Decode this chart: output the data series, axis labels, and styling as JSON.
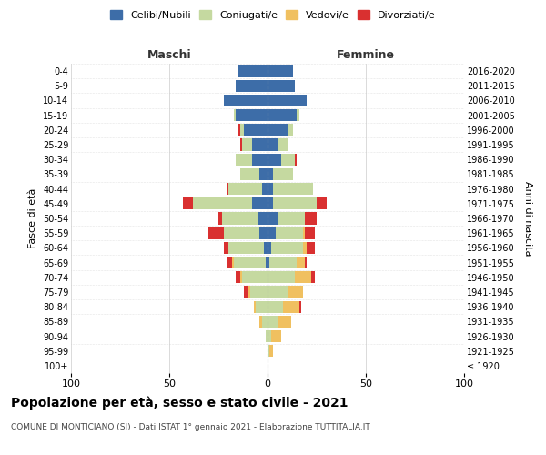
{
  "age_groups": [
    "100+",
    "95-99",
    "90-94",
    "85-89",
    "80-84",
    "75-79",
    "70-74",
    "65-69",
    "60-64",
    "55-59",
    "50-54",
    "45-49",
    "40-44",
    "35-39",
    "30-34",
    "25-29",
    "20-24",
    "15-19",
    "10-14",
    "5-9",
    "0-4"
  ],
  "birth_years": [
    "≤ 1920",
    "1921-1925",
    "1926-1930",
    "1931-1935",
    "1936-1940",
    "1941-1945",
    "1946-1950",
    "1951-1955",
    "1956-1960",
    "1961-1965",
    "1966-1970",
    "1971-1975",
    "1976-1980",
    "1981-1985",
    "1986-1990",
    "1991-1995",
    "1996-2000",
    "2001-2005",
    "2006-2010",
    "2011-2015",
    "2016-2020"
  ],
  "maschi": {
    "celibi": [
      0,
      0,
      0,
      0,
      0,
      0,
      0,
      1,
      2,
      4,
      5,
      8,
      3,
      4,
      8,
      8,
      12,
      16,
      22,
      16,
      15
    ],
    "coniugati": [
      0,
      0,
      1,
      3,
      6,
      9,
      13,
      16,
      18,
      18,
      18,
      30,
      17,
      10,
      8,
      5,
      2,
      1,
      0,
      0,
      0
    ],
    "vedovi": [
      0,
      0,
      0,
      1,
      1,
      1,
      1,
      1,
      0,
      0,
      0,
      0,
      0,
      0,
      0,
      0,
      0,
      0,
      0,
      0,
      0
    ],
    "divorziati": [
      0,
      0,
      0,
      0,
      0,
      2,
      2,
      3,
      2,
      8,
      2,
      5,
      1,
      0,
      0,
      1,
      1,
      0,
      0,
      0,
      0
    ]
  },
  "femmine": {
    "nubili": [
      0,
      0,
      0,
      0,
      0,
      0,
      0,
      1,
      2,
      4,
      5,
      3,
      3,
      3,
      7,
      5,
      10,
      15,
      20,
      14,
      13
    ],
    "coniugate": [
      0,
      1,
      2,
      5,
      8,
      10,
      14,
      14,
      16,
      14,
      14,
      22,
      20,
      10,
      7,
      5,
      3,
      1,
      0,
      0,
      0
    ],
    "vedove": [
      0,
      2,
      5,
      7,
      8,
      8,
      8,
      4,
      2,
      1,
      0,
      0,
      0,
      0,
      0,
      0,
      0,
      0,
      0,
      0,
      0
    ],
    "divorziate": [
      0,
      0,
      0,
      0,
      1,
      0,
      2,
      1,
      4,
      5,
      6,
      5,
      0,
      0,
      1,
      0,
      0,
      0,
      0,
      0,
      0
    ]
  },
  "colors": {
    "celibi": "#3d6da8",
    "coniugati": "#c5d9a0",
    "vedovi": "#f0c060",
    "divorziati": "#d93030"
  },
  "title": "Popolazione per età, sesso e stato civile - 2021",
  "subtitle": "COMUNE DI MONTICIANO (SI) - Dati ISTAT 1° gennaio 2021 - Elaborazione TUTTITALIA.IT",
  "xlabel_left": "Maschi",
  "xlabel_right": "Femmine",
  "ylabel": "Fasce di età",
  "ylabel_right": "Anni di nascita",
  "xlim": 100,
  "background_color": "#ffffff",
  "legend_labels": [
    "Celibi/Nubili",
    "Coniugati/e",
    "Vedovi/e",
    "Divorziati/e"
  ]
}
